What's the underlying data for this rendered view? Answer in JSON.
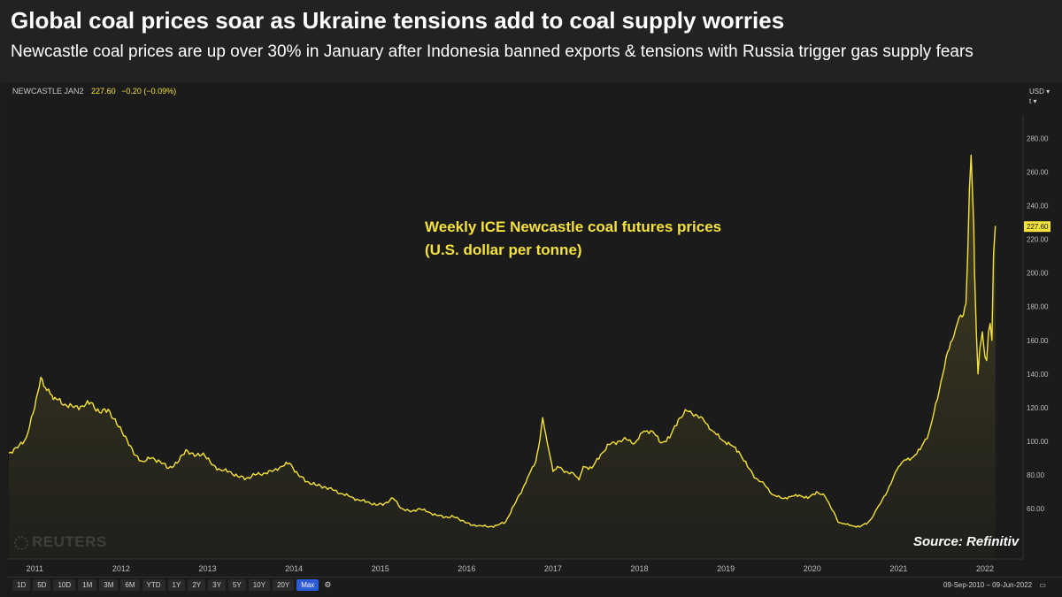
{
  "header": {
    "title": "Global coal prices soar as Ukraine tensions add to coal supply worries",
    "subtitle": "Newcastle coal prices are up over 30% in January after Indonesia banned exports & tensions with Russia trigger gas supply fears"
  },
  "ticker": {
    "symbol": "NEWCASTLE JAN2",
    "value": "227.60",
    "change": "−0.20 (−0.09%)"
  },
  "currency": {
    "unit": "USD",
    "scale": "t"
  },
  "annotation": {
    "line1": "Weekly ICE Newcastle coal futures prices",
    "line2": "(U.S. dollar per tonne)"
  },
  "source": "Source: Refinitiv",
  "watermark": "REUTERS",
  "range_buttons": [
    "1D",
    "5D",
    "10D",
    "1M",
    "3M",
    "6M",
    "YTD",
    "1Y",
    "2Y",
    "3Y",
    "5Y",
    "10Y",
    "20Y",
    "Max"
  ],
  "active_range": "Max",
  "date_range": {
    "start": "09-Sep-2010",
    "end": "09-Jun-2022"
  },
  "colors": {
    "line": "#f5e23a",
    "background": "#1b1b1b",
    "active_button": "#2e5bd8"
  },
  "chart_data": {
    "type": "line",
    "title": "Weekly ICE Newcastle coal futures prices",
    "ylabel": "U.S. dollar per tonne",
    "xlim": [
      2010.7,
      2022.4
    ],
    "ylim": [
      30,
      295
    ],
    "yticks": [
      60,
      80,
      100,
      120,
      140,
      160,
      180,
      200,
      220,
      240,
      260,
      280
    ],
    "ytick_labels": [
      "60.00",
      "80.00",
      "100.00",
      "120.00",
      "140.00",
      "160.00",
      "180.00",
      "200.00",
      "220.00",
      "240.00",
      "260.00",
      "280.00"
    ],
    "xticks": [
      2011,
      2012,
      2013,
      2014,
      2015,
      2016,
      2017,
      2018,
      2019,
      2020,
      2021,
      2022
    ],
    "xtick_labels": [
      "2011",
      "2012",
      "2013",
      "2014",
      "2015",
      "2016",
      "2017",
      "2018",
      "2019",
      "2020",
      "2021",
      "2022"
    ],
    "last_label": "227.60",
    "last_value": 227.6,
    "series": [
      {
        "name": "NEWCASTLE JAN2",
        "x": [
          2010.7,
          2010.8,
          2010.9,
          2011.0,
          2011.03,
          2011.07,
          2011.12,
          2011.18,
          2011.25,
          2011.35,
          2011.45,
          2011.55,
          2011.65,
          2011.75,
          2011.85,
          2011.95,
          2012.05,
          2012.15,
          2012.25,
          2012.35,
          2012.45,
          2012.55,
          2012.65,
          2012.75,
          2012.85,
          2012.95,
          2013.05,
          2013.15,
          2013.25,
          2013.35,
          2013.45,
          2013.55,
          2013.65,
          2013.75,
          2013.85,
          2013.95,
          2014.05,
          2014.15,
          2014.25,
          2014.35,
          2014.45,
          2014.55,
          2014.65,
          2014.75,
          2014.85,
          2014.95,
          2015.05,
          2015.15,
          2015.25,
          2015.35,
          2015.45,
          2015.55,
          2015.65,
          2015.75,
          2015.85,
          2015.95,
          2016.05,
          2016.15,
          2016.25,
          2016.35,
          2016.45,
          2016.55,
          2016.65,
          2016.72,
          2016.8,
          2016.85,
          2016.88,
          2016.9,
          2016.95,
          2017.0,
          2017.05,
          2017.15,
          2017.25,
          2017.3,
          2017.35,
          2017.45,
          2017.55,
          2017.65,
          2017.75,
          2017.85,
          2017.95,
          2018.05,
          2018.15,
          2018.25,
          2018.35,
          2018.45,
          2018.55,
          2018.65,
          2018.75,
          2018.85,
          2018.95,
          2019.05,
          2019.15,
          2019.25,
          2019.35,
          2019.45,
          2019.55,
          2019.65,
          2019.75,
          2019.85,
          2019.95,
          2020.05,
          2020.15,
          2020.25,
          2020.3,
          2020.35,
          2020.45,
          2020.55,
          2020.65,
          2020.7,
          2020.75,
          2020.85,
          2020.95,
          2021.0,
          2021.05,
          2021.15,
          2021.25,
          2021.35,
          2021.45,
          2021.55,
          2021.62,
          2021.68,
          2021.72,
          2021.75,
          2021.78,
          2021.8,
          2021.82,
          2021.84,
          2021.86,
          2021.87,
          2021.88,
          2021.9,
          2021.92,
          2021.94,
          2021.97,
          2022.0,
          2022.02,
          2022.04,
          2022.06,
          2022.08,
          2022.1,
          2022.12
        ],
        "values": [
          93,
          96,
          102,
          120,
          128,
          138,
          132,
          128,
          125,
          122,
          120,
          121,
          123,
          117,
          119,
          110,
          103,
          92,
          88,
          90,
          88,
          84,
          87,
          95,
          91,
          93,
          86,
          83,
          82,
          79,
          78,
          80,
          81,
          82,
          85,
          87,
          80,
          76,
          74,
          73,
          71,
          69,
          67,
          65,
          64,
          62,
          63,
          66,
          60,
          58,
          60,
          58,
          56,
          55,
          55,
          53,
          50,
          50,
          49,
          50,
          52,
          62,
          72,
          80,
          88,
          102,
          114,
          108,
          95,
          82,
          85,
          82,
          80,
          77,
          85,
          84,
          92,
          98,
          100,
          101,
          99,
          106,
          106,
          99,
          102,
          113,
          118,
          116,
          112,
          106,
          101,
          98,
          94,
          85,
          78,
          74,
          68,
          66,
          67,
          68,
          66,
          70,
          67,
          58,
          52,
          51,
          50,
          49,
          52,
          55,
          60,
          68,
          80,
          85,
          88,
          90,
          95,
          105,
          125,
          150,
          160,
          170,
          175,
          175,
          182,
          210,
          250,
          270,
          242,
          228,
          200,
          165,
          140,
          155,
          165,
          150,
          148,
          165,
          170,
          160,
          212,
          228
        ]
      }
    ]
  }
}
